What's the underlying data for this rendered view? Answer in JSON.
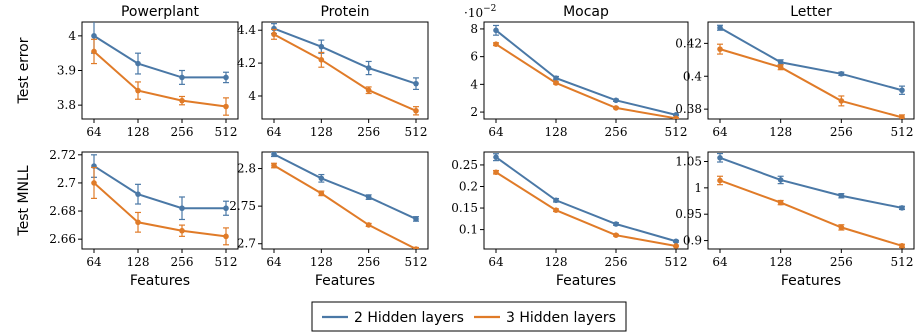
{
  "colors": {
    "2 Hidden layers": "#4a78a6",
    "3 Hidden layers": "#e07b28"
  },
  "legend": {
    "placement": "bottom-center",
    "items": [
      "2 Hidden layers",
      "3 Hidden layers"
    ]
  },
  "chart_data": [
    {
      "type": "line",
      "title": "Powerplant",
      "ylabel": "Test error",
      "xlabel": "",
      "categories": [
        "64",
        "128",
        "256",
        "512"
      ],
      "ylim": [
        3.76,
        4.04
      ],
      "yticks": [
        {
          "v": 3.8,
          "label": "3.8"
        },
        {
          "v": 3.9,
          "label": "3.9"
        },
        {
          "v": 4.0,
          "label": "4"
        }
      ],
      "yscale_label": "",
      "series": [
        {
          "name": "2 Hidden layers",
          "values": [
            4.0,
            3.92,
            3.88,
            3.88
          ],
          "errors": [
            0.05,
            0.03,
            0.02,
            0.015
          ]
        },
        {
          "name": "3 Hidden layers",
          "values": [
            3.955,
            3.842,
            3.813,
            3.796
          ],
          "errors": [
            0.035,
            0.025,
            0.012,
            0.025
          ]
        }
      ]
    },
    {
      "type": "line",
      "title": "Protein",
      "ylabel": "",
      "xlabel": "",
      "categories": [
        "64",
        "128",
        "256",
        "512"
      ],
      "ylim": [
        3.86,
        4.45
      ],
      "yticks": [
        {
          "v": 4.0,
          "label": "4"
        },
        {
          "v": 4.2,
          "label": "4.2"
        },
        {
          "v": 4.4,
          "label": "4.4"
        }
      ],
      "yscale_label": "",
      "series": [
        {
          "name": "2 Hidden layers",
          "values": [
            4.41,
            4.3,
            4.17,
            4.075
          ],
          "errors": [
            0.03,
            0.04,
            0.04,
            0.035
          ]
        },
        {
          "name": "3 Hidden layers",
          "values": [
            4.375,
            4.22,
            4.035,
            3.91
          ],
          "errors": [
            0.03,
            0.045,
            0.02,
            0.025
          ]
        }
      ]
    },
    {
      "type": "line",
      "title": "Mocap",
      "ylabel": "",
      "xlabel": "",
      "categories": [
        "64",
        "128",
        "256",
        "512"
      ],
      "ylim": [
        1.5,
        8.5
      ],
      "yticks": [
        {
          "v": 2,
          "label": "2"
        },
        {
          "v": 4,
          "label": "4"
        },
        {
          "v": 6,
          "label": "6"
        },
        {
          "v": 8,
          "label": "8"
        }
      ],
      "yscale_label": "·10",
      "yscale_exp": "−2",
      "series": [
        {
          "name": "2 Hidden layers",
          "values": [
            7.9,
            4.45,
            2.85,
            1.8
          ],
          "errors": [
            0.35,
            0.12,
            0.08,
            0.06
          ]
        },
        {
          "name": "3 Hidden layers",
          "values": [
            6.9,
            4.1,
            2.3,
            1.55
          ],
          "errors": [
            0.1,
            0.08,
            0.06,
            0.04
          ]
        }
      ]
    },
    {
      "type": "line",
      "title": "Letter",
      "ylabel": "",
      "xlabel": "",
      "categories": [
        "64",
        "128",
        "256",
        "512"
      ],
      "ylim": [
        0.374,
        0.433
      ],
      "yticks": [
        {
          "v": 0.38,
          "label": "0.38"
        },
        {
          "v": 0.4,
          "label": "0.4"
        },
        {
          "v": 0.42,
          "label": "0.42"
        }
      ],
      "yscale_label": "",
      "series": [
        {
          "name": "2 Hidden layers",
          "values": [
            0.4295,
            0.4085,
            0.4015,
            0.3915
          ],
          "errors": [
            0.0015,
            0.0015,
            0.001,
            0.0025
          ]
        },
        {
          "name": "3 Hidden layers",
          "values": [
            0.4165,
            0.4055,
            0.385,
            0.375
          ],
          "errors": [
            0.003,
            0.0015,
            0.003,
            0.0015
          ]
        }
      ]
    },
    {
      "type": "line",
      "title": "",
      "ylabel": "Test MNLL",
      "xlabel": "Features",
      "categories": [
        "64",
        "128",
        "256",
        "512"
      ],
      "ylim": [
        2.653,
        2.722
      ],
      "yticks": [
        {
          "v": 2.66,
          "label": "2.66"
        },
        {
          "v": 2.68,
          "label": "2.68"
        },
        {
          "v": 2.7,
          "label": "2.7"
        },
        {
          "v": 2.72,
          "label": "2.72"
        }
      ],
      "yscale_label": "",
      "series": [
        {
          "name": "2 Hidden layers",
          "values": [
            2.712,
            2.692,
            2.682,
            2.682
          ],
          "errors": [
            0.008,
            0.007,
            0.008,
            0.005
          ]
        },
        {
          "name": "3 Hidden layers",
          "values": [
            2.7,
            2.672,
            2.666,
            2.662
          ],
          "errors": [
            0.011,
            0.007,
            0.004,
            0.006
          ]
        }
      ]
    },
    {
      "type": "line",
      "title": "",
      "ylabel": "",
      "xlabel": "Features",
      "categories": [
        "64",
        "128",
        "256",
        "512"
      ],
      "ylim": [
        2.693,
        2.822
      ],
      "yticks": [
        {
          "v": 2.7,
          "label": "2.7"
        },
        {
          "v": 2.75,
          "label": "2.75"
        },
        {
          "v": 2.8,
          "label": "2.8"
        }
      ],
      "yscale_label": "",
      "series": [
        {
          "name": "2 Hidden layers",
          "values": [
            2.819,
            2.787,
            2.762,
            2.733
          ],
          "errors": [
            0.003,
            0.005,
            0.003,
            0.003
          ]
        },
        {
          "name": "3 Hidden layers",
          "values": [
            2.804,
            2.767,
            2.725,
            2.693
          ],
          "errors": [
            0.003,
            0.003,
            0.002,
            0.002
          ]
        }
      ]
    },
    {
      "type": "line",
      "title": "",
      "ylabel": "",
      "xlabel": "Features",
      "categories": [
        "64",
        "128",
        "256",
        "512"
      ],
      "ylim": [
        0.055,
        0.28
      ],
      "yticks": [
        {
          "v": 0.1,
          "label": "0.1"
        },
        {
          "v": 0.15,
          "label": "0.15"
        },
        {
          "v": 0.2,
          "label": "0.2"
        },
        {
          "v": 0.25,
          "label": "0.25"
        }
      ],
      "yscale_label": "",
      "series": [
        {
          "name": "2 Hidden layers",
          "values": [
            0.268,
            0.168,
            0.113,
            0.073
          ],
          "errors": [
            0.008,
            0.004,
            0.003,
            0.002
          ]
        },
        {
          "name": "3 Hidden layers",
          "values": [
            0.233,
            0.145,
            0.087,
            0.062
          ],
          "errors": [
            0.004,
            0.003,
            0.002,
            0.002
          ]
        }
      ]
    },
    {
      "type": "line",
      "title": "",
      "ylabel": "",
      "xlabel": "Features",
      "categories": [
        "64",
        "128",
        "256",
        "512"
      ],
      "ylim": [
        0.884,
        1.068
      ],
      "yticks": [
        {
          "v": 0.9,
          "label": "0.9"
        },
        {
          "v": 0.95,
          "label": "0.95"
        },
        {
          "v": 1.0,
          "label": "1"
        },
        {
          "v": 1.05,
          "label": "1.05"
        }
      ],
      "yscale_label": "",
      "series": [
        {
          "name": "2 Hidden layers",
          "values": [
            1.057,
            1.015,
            0.985,
            0.962
          ],
          "errors": [
            0.008,
            0.007,
            0.004,
            0.003
          ]
        },
        {
          "name": "3 Hidden layers",
          "values": [
            1.014,
            0.972,
            0.925,
            0.89
          ],
          "errors": [
            0.008,
            0.004,
            0.005,
            0.003
          ]
        }
      ]
    }
  ]
}
